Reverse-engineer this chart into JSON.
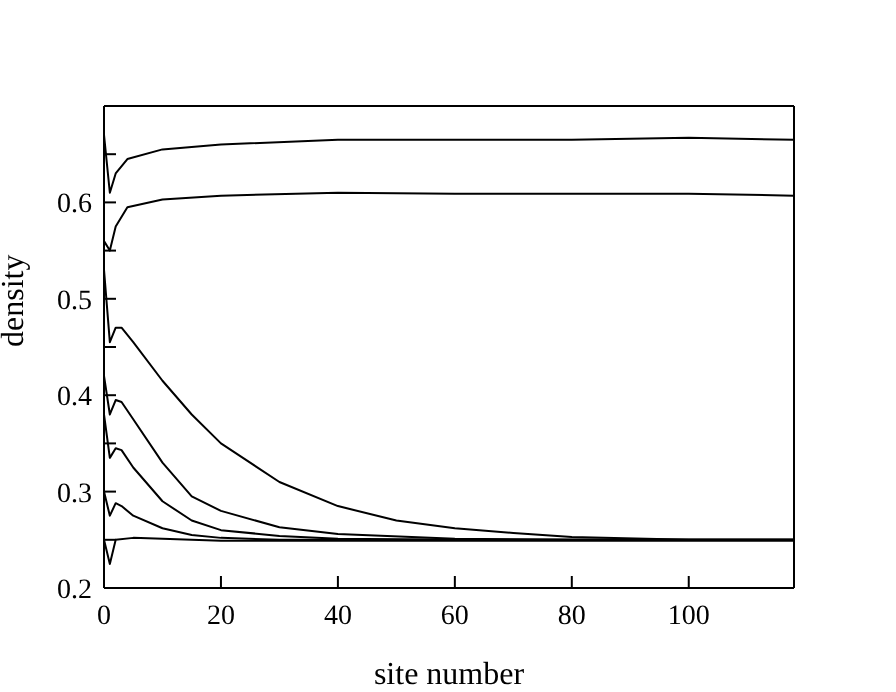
{
  "chart_data": {
    "type": "line",
    "xlabel": "site number",
    "ylabel": "density",
    "xlim": [
      0,
      118
    ],
    "xticks": [
      0,
      20,
      40,
      60,
      80,
      100
    ],
    "ylim": [
      0.2,
      0.7
    ],
    "yticks": [
      0.2,
      {
        "value": 0.25,
        "label": null
      },
      0.3,
      {
        "value": 0.35,
        "label": null
      },
      0.4,
      {
        "value": 0.45,
        "label": null
      },
      0.5,
      {
        "value": 0.55,
        "label": null
      },
      0.6,
      {
        "value": 0.65,
        "label": null
      },
      {
        "value": 0.7,
        "label": null
      }
    ],
    "marker": "none",
    "line_style": "solid",
    "series": [
      {
        "color": "#000000",
        "x": [
          0,
          1,
          2,
          4,
          10,
          20,
          40,
          60,
          80,
          100,
          118
        ],
        "values": [
          0.67,
          0.61,
          0.63,
          0.645,
          0.655,
          0.66,
          0.665,
          0.665,
          0.665,
          0.667,
          0.665
        ]
      },
      {
        "color": "#000000",
        "x": [
          0,
          1,
          2,
          4,
          10,
          20,
          40,
          60,
          80,
          100,
          118
        ],
        "values": [
          0.56,
          0.55,
          0.575,
          0.595,
          0.603,
          0.607,
          0.61,
          0.609,
          0.609,
          0.609,
          0.607
        ]
      },
      {
        "color": "#000000",
        "x": [
          0,
          1,
          2,
          3,
          5,
          10,
          15,
          20,
          30,
          40,
          50,
          60,
          70,
          80,
          100,
          118
        ],
        "values": [
          0.53,
          0.455,
          0.47,
          0.47,
          0.455,
          0.415,
          0.38,
          0.35,
          0.31,
          0.285,
          0.27,
          0.262,
          0.257,
          0.253,
          0.25,
          0.25
        ]
      },
      {
        "color": "#000000",
        "x": [
          0,
          1,
          2,
          3,
          5,
          10,
          15,
          20,
          30,
          40,
          60,
          80,
          118
        ],
        "values": [
          0.42,
          0.38,
          0.395,
          0.393,
          0.375,
          0.33,
          0.295,
          0.28,
          0.263,
          0.256,
          0.251,
          0.25,
          0.25
        ]
      },
      {
        "color": "#000000",
        "x": [
          0,
          1,
          2,
          3,
          5,
          10,
          15,
          20,
          30,
          40,
          60,
          118
        ],
        "values": [
          0.38,
          0.335,
          0.345,
          0.343,
          0.325,
          0.29,
          0.27,
          0.26,
          0.254,
          0.251,
          0.25,
          0.25
        ]
      },
      {
        "color": "#000000",
        "x": [
          0,
          1,
          2,
          3,
          5,
          10,
          15,
          20,
          30,
          118
        ],
        "values": [
          0.3,
          0.275,
          0.288,
          0.285,
          0.275,
          0.262,
          0.255,
          0.252,
          0.25,
          0.25
        ]
      },
      {
        "color": "#000000",
        "x": [
          0,
          1,
          2,
          5,
          10,
          20,
          118
        ],
        "values": [
          0.25,
          0.225,
          0.25,
          0.252,
          0.251,
          0.249,
          0.249
        ]
      }
    ]
  }
}
